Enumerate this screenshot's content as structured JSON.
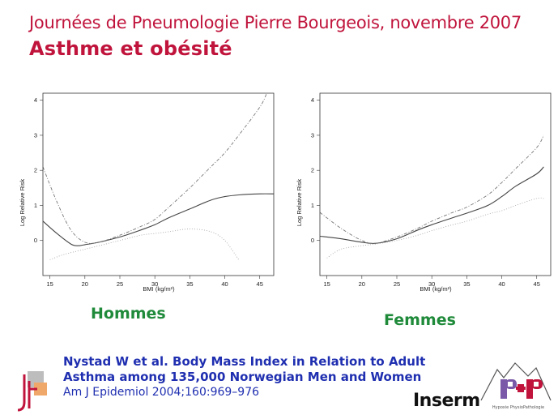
{
  "header": {
    "event": "Journées de Pneumologie Pierre Bourgeois, novembre 2007",
    "title": "Asthme et obésité"
  },
  "chart_data": [
    {
      "type": "line",
      "panel_label": "Hommes",
      "xlabel": "BMI (kg/m²)",
      "ylabel": "Log Relative Risk",
      "xlim": [
        14,
        47
      ],
      "ylim": [
        -1,
        4.2
      ],
      "xticks": [
        "15",
        "20",
        "25",
        "30",
        "35",
        "40",
        "45"
      ],
      "yticks": [
        "0",
        "1",
        "2",
        "3",
        "4"
      ],
      "series": [
        {
          "style": "solid",
          "x": [
            14,
            16,
            18,
            19,
            20,
            22,
            25,
            28,
            30,
            32,
            35,
            38,
            40,
            42,
            45,
            47
          ],
          "values": [
            0.55,
            0.2,
            -0.1,
            -0.15,
            -0.12,
            -0.05,
            0.1,
            0.3,
            0.45,
            0.65,
            0.9,
            1.15,
            1.25,
            1.3,
            1.33,
            1.33
          ]
        },
        {
          "style": "dashed",
          "x": [
            14,
            16,
            18,
            20,
            22,
            25,
            28,
            30,
            32,
            35,
            38,
            40,
            42,
            45,
            46
          ],
          "values": [
            2.1,
            1.1,
            0.3,
            -0.05,
            -0.05,
            0.15,
            0.4,
            0.6,
            0.95,
            1.5,
            2.1,
            2.5,
            3.0,
            3.8,
            4.2
          ]
        },
        {
          "style": "dotted",
          "x": [
            15,
            17,
            20,
            23,
            25,
            28,
            30,
            32,
            35,
            38,
            40,
            42
          ],
          "values": [
            -0.55,
            -0.4,
            -0.25,
            -0.1,
            0.0,
            0.15,
            0.2,
            0.25,
            0.33,
            0.25,
            0.0,
            -0.55
          ]
        }
      ]
    },
    {
      "type": "line",
      "panel_label": "Femmes",
      "xlabel": "BMI (kg/m²)",
      "ylabel": "Log Relative Risk",
      "xlim": [
        14,
        47
      ],
      "ylim": [
        -1,
        4.2
      ],
      "xticks": [
        "15",
        "20",
        "25",
        "30",
        "35",
        "40",
        "45"
      ],
      "yticks": [
        "0",
        "1",
        "2",
        "3",
        "4"
      ],
      "series": [
        {
          "style": "solid",
          "x": [
            14,
            17,
            20,
            22,
            25,
            28,
            30,
            33,
            35,
            38,
            40,
            42,
            45,
            46
          ],
          "values": [
            0.12,
            0.05,
            -0.05,
            -0.08,
            0.05,
            0.3,
            0.45,
            0.65,
            0.78,
            1.0,
            1.25,
            1.55,
            1.9,
            2.1
          ]
        },
        {
          "style": "dashed",
          "x": [
            14,
            17,
            20,
            22,
            25,
            28,
            30,
            33,
            35,
            38,
            40,
            42,
            45,
            46
          ],
          "values": [
            0.8,
            0.35,
            0.0,
            -0.08,
            0.1,
            0.35,
            0.55,
            0.8,
            0.95,
            1.3,
            1.65,
            2.05,
            2.65,
            3.0
          ]
        },
        {
          "style": "dotted",
          "x": [
            15,
            17,
            20,
            22,
            25,
            28,
            30,
            33,
            35,
            38,
            40,
            42,
            45,
            46
          ],
          "values": [
            -0.5,
            -0.25,
            -0.15,
            -0.1,
            0.0,
            0.15,
            0.28,
            0.45,
            0.55,
            0.75,
            0.85,
            1.0,
            1.2,
            1.2
          ]
        }
      ]
    }
  ],
  "citation": {
    "line1": "Nystad  W et al. Body Mass Index in Relation to Adult",
    "line2": "Asthma among 135,000 Norwegian Men and Women",
    "line3": "Am J Epidemiol 2004;160:969–976"
  },
  "logos": {
    "inserm": "Inserm",
    "php_caption": "Hypoxie PhysioPathologie"
  },
  "colors": {
    "title": "#c0143c",
    "panel_label": "#1f8a3a",
    "citation": "#1f2fb0"
  }
}
